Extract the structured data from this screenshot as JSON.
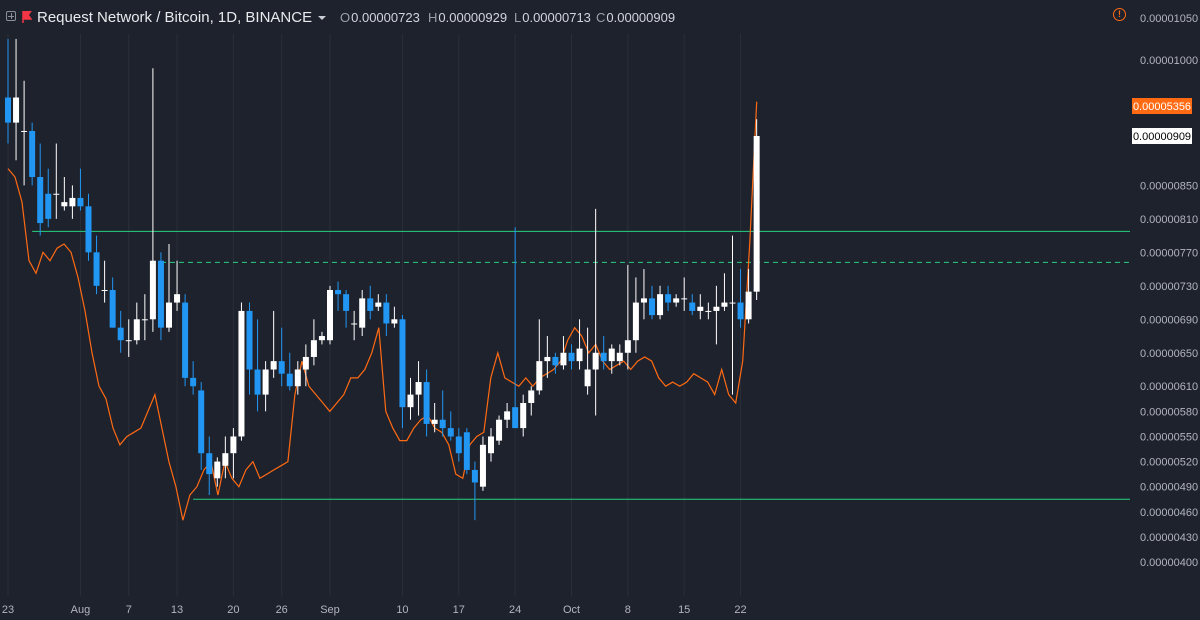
{
  "header": {
    "symbol": "Request Network / Bitcoin, 1D, BINANCE",
    "open_label": "O",
    "open": "0.00000723",
    "high_label": "H",
    "high": "0.00000929",
    "low_label": "L",
    "low": "0.00000713",
    "close_label": "C",
    "close": "0.00000909",
    "warning_icon": "alert-circle-icon",
    "flag_color": "#f23645"
  },
  "chart_data": {
    "type": "candlestick",
    "title": "Request Network / Bitcoin, 1D, BINANCE",
    "y_ticks": [
      "0.00001050",
      "0.00001000",
      "0.00000909",
      "0.00000850",
      "0.00000810",
      "0.00000770",
      "0.00000730",
      "0.00000690",
      "0.00000650",
      "0.00000610",
      "0.00000580",
      "0.00000550",
      "0.00000520",
      "0.00000490",
      "0.00000460",
      "0.00000430",
      "0.00000400"
    ],
    "x_ticks": [
      {
        "label": "23",
        "day": 0
      },
      {
        "label": "Aug",
        "day": 9
      },
      {
        "label": "7",
        "day": 15
      },
      {
        "label": "13",
        "day": 21
      },
      {
        "label": "20",
        "day": 28
      },
      {
        "label": "26",
        "day": 34
      },
      {
        "label": "Sep",
        "day": 40
      },
      {
        "label": "10",
        "day": 49
      },
      {
        "label": "17",
        "day": 56
      },
      {
        "label": "24",
        "day": 63
      },
      {
        "label": "Oct",
        "day": 70
      },
      {
        "label": "8",
        "day": 77
      },
      {
        "label": "15",
        "day": 84
      },
      {
        "label": "22",
        "day": 91
      }
    ],
    "price_tag": {
      "value": "0.00000909",
      "bg": "#ffffff",
      "fg": "#000000"
    },
    "line_tag": {
      "value": "0.00005356",
      "bg": "#ff6a13",
      "fg": "#ffffff"
    },
    "colors": {
      "up": "#ffffff",
      "down": "#2196f3",
      "line": "#ff6a13",
      "level": "#27d17f",
      "grid": "#2a2e39"
    },
    "levels": [
      {
        "price": 7.95e-06,
        "style": "solid",
        "from_day": 3
      },
      {
        "price": 7.58e-06,
        "style": "dashed",
        "from_day": 19
      },
      {
        "price": 4.75e-06,
        "style": "solid",
        "from_day": 23
      }
    ],
    "candles": [
      [
        9.55e-06,
        1.025e-05,
        9e-06,
        9.25e-06
      ],
      [
        9.25e-06,
        1.025e-05,
        8.8e-06,
        9.55e-06
      ],
      [
        9.15e-06,
        9.75e-06,
        8.5e-06,
        9.15e-06
      ],
      [
        9.15e-06,
        9.25e-06,
        8.5e-06,
        8.6e-06
      ],
      [
        8.6e-06,
        9e-06,
        7.9e-06,
        8.05e-06
      ],
      [
        8.4e-06,
        8.7e-06,
        8e-06,
        8.1e-06
      ],
      [
        8.4e-06,
        9e-06,
        8.1e-06,
        8.4e-06
      ],
      [
        8.25e-06,
        8.6e-06,
        8.2e-06,
        8.3e-06
      ],
      [
        8.25e-06,
        8.5e-06,
        8.1e-06,
        8.35e-06
      ],
      [
        8.35e-06,
        8.7e-06,
        8.2e-06,
        8.25e-06
      ],
      [
        8.25e-06,
        8.4e-06,
        7.6e-06,
        7.7e-06
      ],
      [
        7.7e-06,
        7.9e-06,
        7.2e-06,
        7.3e-06
      ],
      [
        7.25e-06,
        7.6e-06,
        7.1e-06,
        7.25e-06
      ],
      [
        7.25e-06,
        7.4e-06,
        6.8e-06,
        6.8e-06
      ],
      [
        6.8e-06,
        7e-06,
        6.5e-06,
        6.65e-06
      ],
      [
        6.65e-06,
        6.9e-06,
        6.45e-06,
        6.65e-06
      ],
      [
        6.65e-06,
        7.1e-06,
        6.6e-06,
        6.9e-06
      ],
      [
        6.9e-06,
        7.2e-06,
        6.65e-06,
        6.9e-06
      ],
      [
        6.9e-06,
        9.9e-06,
        6.75e-06,
        7.6e-06
      ],
      [
        7.6e-06,
        7.7e-06,
        6.65e-06,
        6.8e-06
      ],
      [
        6.8e-06,
        7.8e-06,
        6.75e-06,
        7.1e-06
      ],
      [
        7.1e-06,
        7.6e-06,
        7e-06,
        7.2e-06
      ],
      [
        7.1e-06,
        7.2e-06,
        6.1e-06,
        6.2e-06
      ],
      [
        6.2e-06,
        6.4e-06,
        6e-06,
        6.1e-06
      ],
      [
        6.05e-06,
        6.15e-06,
        5.1e-06,
        5.3e-06
      ],
      [
        5.3e-06,
        5.5e-06,
        4.8e-06,
        5.05e-06
      ],
      [
        5e-06,
        5.25e-06,
        4.9e-06,
        5.2e-06
      ],
      [
        5.15e-06,
        5.5e-06,
        5e-06,
        5.3e-06
      ],
      [
        5.3e-06,
        5.6e-06,
        5e-06,
        5.5e-06
      ],
      [
        5.5e-06,
        7.1e-06,
        5.45e-06,
        7e-06
      ],
      [
        7e-06,
        7.1e-06,
        6e-06,
        6.3e-06
      ],
      [
        6.3e-06,
        6.9e-06,
        5.8e-06,
        6e-06
      ],
      [
        6e-06,
        6.4e-06,
        5.8e-06,
        6.3e-06
      ],
      [
        6.3e-06,
        7e-06,
        6.2e-06,
        6.4e-06
      ],
      [
        6.4e-06,
        6.8e-06,
        6.1e-06,
        6.25e-06
      ],
      [
        6.25e-06,
        6.5e-06,
        6.05e-06,
        6.1e-06
      ],
      [
        6.1e-06,
        6.4e-06,
        6e-06,
        6.3e-06
      ],
      [
        6.3e-06,
        6.6e-06,
        6.1e-06,
        6.45e-06
      ],
      [
        6.45e-06,
        6.9e-06,
        6.35e-06,
        6.65e-06
      ],
      [
        6.65e-06,
        6.75e-06,
        6.6e-06,
        6.7e-06
      ],
      [
        6.65e-06,
        7.3e-06,
        6.6e-06,
        7.25e-06
      ],
      [
        7.25e-06,
        7.35e-06,
        7e-06,
        7.2e-06
      ],
      [
        7.2e-06,
        7.25e-06,
        6.8e-06,
        7e-06
      ],
      [
        6.85e-06,
        7e-06,
        6.65e-06,
        6.85e-06
      ],
      [
        6.8e-06,
        7.25e-06,
        6.7e-06,
        7.15e-06
      ],
      [
        7.15e-06,
        7.3e-06,
        6.9e-06,
        7e-06
      ],
      [
        7.05e-06,
        7.2e-06,
        7e-06,
        7.1e-06
      ],
      [
        7.1e-06,
        7.2e-06,
        6.7e-06,
        6.85e-06
      ],
      [
        6.85e-06,
        7.05e-06,
        6.8e-06,
        6.9e-06
      ],
      [
        6.9e-06,
        6.95e-06,
        5.6e-06,
        5.85e-06
      ],
      [
        5.85e-06,
        6.2e-06,
        5.7e-06,
        6e-06
      ],
      [
        6e-06,
        6.4e-06,
        5.75e-06,
        6.15e-06
      ],
      [
        6.15e-06,
        6.3e-06,
        5.5e-06,
        5.65e-06
      ],
      [
        5.65e-06,
        5.9e-06,
        5.55e-06,
        5.7e-06
      ],
      [
        5.7e-06,
        6.05e-06,
        5.5e-06,
        5.6e-06
      ],
      [
        5.6e-06,
        5.8e-06,
        5.45e-06,
        5.5e-06
      ],
      [
        5.5e-06,
        5.6e-06,
        5.2e-06,
        5.3e-06
      ],
      [
        5.55e-06,
        5.6e-06,
        5.05e-06,
        5.1e-06
      ],
      [
        5.1e-06,
        5.2e-06,
        4.5e-06,
        4.95e-06
      ],
      [
        4.9e-06,
        5.5e-06,
        4.85e-06,
        5.4e-06
      ],
      [
        5.3e-06,
        5.6e-06,
        5.2e-06,
        5.5e-06
      ],
      [
        5.45e-06,
        5.75e-06,
        5.4e-06,
        5.7e-06
      ],
      [
        5.7e-06,
        5.9e-06,
        5.6e-06,
        5.8e-06
      ],
      [
        5.85e-06,
        8e-06,
        5.6e-06,
        5.6e-06
      ],
      [
        5.6e-06,
        6e-06,
        5.5e-06,
        5.9e-06
      ],
      [
        5.9e-06,
        6.1e-06,
        5.75e-06,
        6.05e-06
      ],
      [
        6.05e-06,
        6.9e-06,
        6e-06,
        6.4e-06
      ],
      [
        6.4e-06,
        6.7e-06,
        6.2e-06,
        6.45e-06
      ],
      [
        6.45e-06,
        6.5e-06,
        6.25e-06,
        6.35e-06
      ],
      [
        6.35e-06,
        6.7e-06,
        6.3e-06,
        6.5e-06
      ],
      [
        6.5e-06,
        6.6e-06,
        6.3e-06,
        6.4e-06
      ],
      [
        6.4e-06,
        6.9e-06,
        6.3e-06,
        6.55e-06
      ],
      [
        6.1e-06,
        6.8e-06,
        6e-06,
        6.3e-06
      ],
      [
        6.3e-06,
        8.22e-06,
        5.75e-06,
        6.5e-06
      ],
      [
        6.5e-06,
        6.7e-06,
        6.3e-06,
        6.4e-06
      ],
      [
        6.4e-06,
        6.6e-06,
        6.25e-06,
        6.55e-06
      ],
      [
        6.4e-06,
        6.6e-06,
        6.35e-06,
        6.5e-06
      ],
      [
        6.5e-06,
        7.55e-06,
        6.3e-06,
        6.65e-06
      ],
      [
        6.65e-06,
        7.4e-06,
        6.5e-06,
        7.1e-06
      ],
      [
        7.1e-06,
        7.5e-06,
        6.9e-06,
        7.15e-06
      ],
      [
        7.15e-06,
        7.3e-06,
        6.9e-06,
        6.95e-06
      ],
      [
        6.95e-06,
        7.3e-06,
        6.9e-06,
        7.2e-06
      ],
      [
        7.2e-06,
        7.3e-06,
        7e-06,
        7.1e-06
      ],
      [
        7.1e-06,
        7.2e-06,
        7.05e-06,
        7.15e-06
      ],
      [
        7.15e-06,
        7.4e-06,
        7e-06,
        7.15e-06
      ],
      [
        7.1e-06,
        7.2e-06,
        6.95e-06,
        7e-06
      ],
      [
        7e-06,
        7.2e-06,
        6.9e-06,
        7.05e-06
      ],
      [
        7e-06,
        7.1e-06,
        6.9e-06,
        7e-06
      ],
      [
        7e-06,
        7.3e-06,
        6.6e-06,
        7.05e-06
      ],
      [
        7.05e-06,
        7.45e-06,
        7e-06,
        7.1e-06
      ],
      [
        7.1e-06,
        7.9e-06,
        6e-06,
        7.1e-06
      ],
      [
        7.1e-06,
        7.5e-06,
        6.8e-06,
        6.9e-06
      ],
      [
        6.9e-06,
        7.5e-06,
        6.85e-06,
        7.23e-06
      ],
      [
        7.23e-06,
        9.29e-06,
        7.13e-06,
        9.09e-06
      ]
    ],
    "overlay_line": [
      8.7e-06,
      8.6e-06,
      8.3e-06,
      7.6e-06,
      7.45e-06,
      7.7e-06,
      7.6e-06,
      7.75e-06,
      7.8e-06,
      7.7e-06,
      7.4e-06,
      7e-06,
      6.5e-06,
      6.1e-06,
      5.95e-06,
      5.6e-06,
      5.4e-06,
      5.5e-06,
      5.55e-06,
      5.6e-06,
      5.8e-06,
      6e-06,
      5.6e-06,
      5.2e-06,
      4.9e-06,
      4.5e-06,
      4.8e-06,
      4.9e-06,
      5.1e-06,
      5.2e-06,
      4.8e-06,
      5.2e-06,
      5e-06,
      4.9e-06,
      5.1e-06,
      5.2e-06,
      5e-06,
      5.05e-06,
      5.1e-06,
      5.15e-06,
      5.2e-06,
      6e-06,
      6.4e-06,
      6.1e-06,
      6e-06,
      5.9e-06,
      5.8e-06,
      5.9e-06,
      6e-06,
      6.2e-06,
      6.2e-06,
      6.3e-06,
      6.5e-06,
      6.8e-06,
      5.8e-06,
      5.6e-06,
      5.45e-06,
      5.45e-06,
      5.6e-06,
      5.7e-06,
      5.75e-06,
      5.6e-06,
      5.55e-06,
      5.4e-06,
      5.05e-06,
      5e-06,
      5.4e-06,
      5.5e-06,
      5.55e-06,
      6.2e-06,
      6.5e-06,
      6.2e-06,
      6.15e-06,
      6.1e-06,
      6.2e-06,
      6.1e-06,
      6.2e-06,
      6.25e-06,
      6.3e-06,
      6.4e-06,
      6.65e-06,
      6.8e-06,
      6.7e-06,
      6.5e-06,
      6.6e-06,
      6.4e-06,
      6.3e-06,
      6.35e-06,
      6.4e-06,
      6.3e-06,
      6.4e-06,
      6.45e-06,
      6.4e-06,
      6.2e-06,
      6.1e-06,
      6.15e-06,
      6.1e-06,
      6.15e-06,
      6.25e-06,
      6.2e-06,
      6.15e-06,
      6e-06,
      6.3e-06,
      6e-06,
      5.9e-06,
      6.4e-06,
      7.8e-06,
      9.5e-06
    ]
  }
}
